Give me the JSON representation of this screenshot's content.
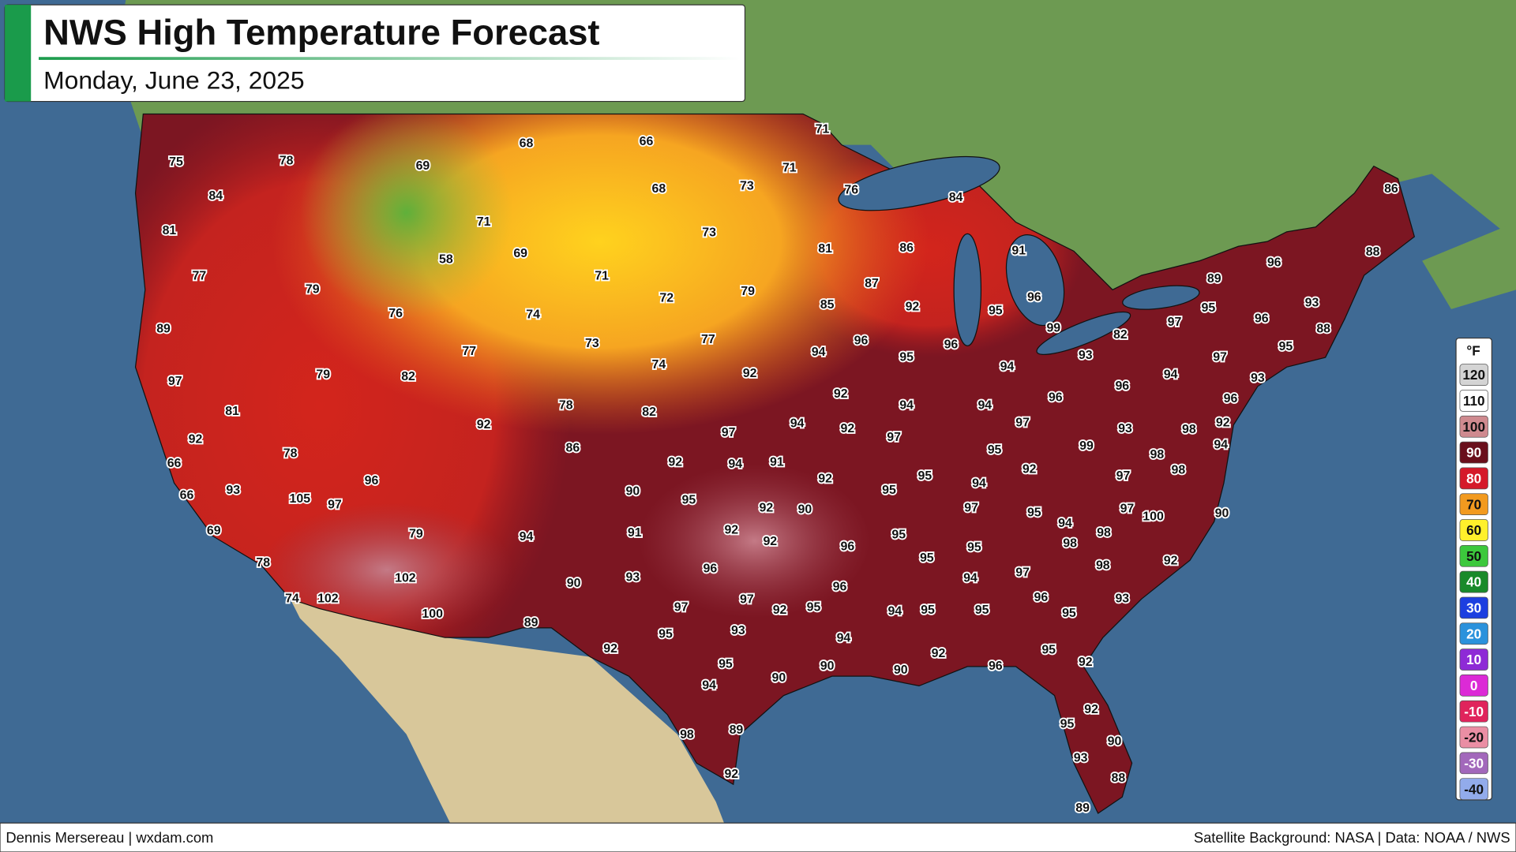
{
  "header": {
    "title": "NWS High Temperature Forecast",
    "subtitle": "Monday, June 23, 2025"
  },
  "map": {
    "labels": [
      75,
      78,
      84,
      69,
      68,
      66,
      71,
      71,
      73,
      68,
      76,
      84,
      86,
      81,
      71,
      73,
      58,
      69,
      81,
      86,
      91,
      96,
      88,
      77,
      79,
      71,
      72,
      79,
      87,
      89,
      76,
      74,
      85,
      92,
      96,
      95,
      97,
      95,
      96,
      93,
      89,
      73,
      77,
      96,
      94,
      96,
      99,
      82,
      88,
      95,
      77,
      95,
      94,
      93,
      97,
      74,
      79,
      82,
      92,
      94,
      93,
      97,
      92,
      96,
      96,
      96,
      78,
      82,
      94,
      94,
      81,
      92,
      94,
      92,
      97,
      93,
      98,
      92,
      97,
      97,
      92,
      86,
      99,
      95,
      98,
      94,
      78,
      92,
      94,
      91,
      92,
      98,
      66,
      92,
      95,
      94,
      97,
      96,
      90,
      95,
      95,
      93,
      66,
      105,
      97,
      92,
      90,
      97,
      95,
      97,
      100,
      90,
      94,
      69,
      79,
      94,
      91,
      92,
      92,
      95,
      98,
      98,
      96,
      95,
      95,
      98,
      92,
      78,
      96,
      97,
      94,
      102,
      90,
      93,
      96,
      74,
      102,
      97,
      97,
      92,
      95,
      94,
      95,
      95,
      96,
      95,
      93,
      100,
      89,
      93,
      95,
      94,
      92,
      92,
      95,
      95,
      90,
      90,
      96,
      92,
      90,
      94,
      92,
      95,
      89,
      98,
      90,
      93,
      88,
      92,
      89
    ]
  },
  "legend": {
    "unit": "°F",
    "entries": [
      {
        "value": 120,
        "color": "#d4d4d4"
      },
      {
        "value": 110,
        "color": "#ffffff"
      },
      {
        "value": 100,
        "color": "#cf8a8f"
      },
      {
        "value": 90,
        "color": "#6a0f1b"
      },
      {
        "value": 80,
        "color": "#d51a2a"
      },
      {
        "value": 70,
        "color": "#f29a1f"
      },
      {
        "value": 60,
        "color": "#fff02b"
      },
      {
        "value": 50,
        "color": "#3cc83c"
      },
      {
        "value": 40,
        "color": "#198a2a"
      },
      {
        "value": 30,
        "color": "#1d3fe0"
      },
      {
        "value": 20,
        "color": "#2b92dc"
      },
      {
        "value": 10,
        "color": "#8e2ad6"
      },
      {
        "value": 0,
        "color": "#dc2ad6"
      },
      {
        "value": -10,
        "color": "#e0245c"
      },
      {
        "value": -20,
        "color": "#ea8ea4"
      },
      {
        "value": -30,
        "color": "#a268bb"
      },
      {
        "value": -40,
        "color": "#92abeb"
      }
    ]
  },
  "footer": {
    "credit": "Dennis Mersereau | wxdam.com",
    "source": "Satellite Background: NASA | Data: NOAA / NWS"
  }
}
